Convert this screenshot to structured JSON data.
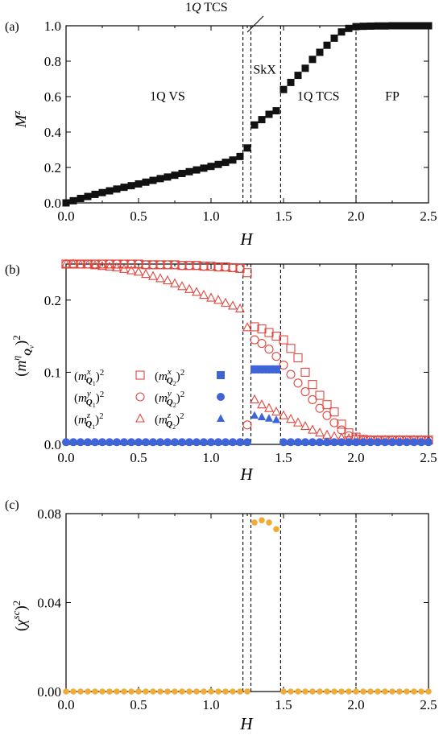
{
  "colors": {
    "red": "#e0473f",
    "blue": "#3f64d8",
    "orange": "#f2ac36",
    "black": "#111111"
  },
  "transitions": [
    1.22,
    1.275,
    1.48,
    2.0
  ],
  "panels": [
    {
      "id": "a",
      "label": "(a)",
      "xlabel": "H",
      "ylabel": "Mz",
      "xlim": [
        0,
        2.5
      ],
      "ylim": [
        0,
        1.0
      ],
      "xticks": [
        "0.0",
        "0.5",
        "1.0",
        "1.5",
        "2.0",
        "2.5"
      ],
      "yticks": [
        "0.0",
        "0.2",
        "0.4",
        "0.6",
        "0.8",
        "1.0"
      ],
      "regions": [
        {
          "text": "1Q VS",
          "x": 0.7,
          "y": 0.58
        },
        {
          "text": "SkX",
          "x": 1.37,
          "y": 0.73
        },
        {
          "text": "1Q TCS",
          "x": 1.74,
          "y": 0.58
        },
        {
          "text": "FP",
          "x": 2.25,
          "y": 0.58
        }
      ],
      "annotation": "1Q TCS"
    },
    {
      "id": "b",
      "label": "(b)",
      "xlabel": "H",
      "ylabel": "(m^η_Qν)^2",
      "xlim": [
        0,
        2.5
      ],
      "ylim": [
        0,
        0.25
      ],
      "xticks": [
        "0.0",
        "0.5",
        "1.0",
        "1.5",
        "2.0",
        "2.5"
      ],
      "yticks": [
        "0.0",
        "0.1",
        "0.2"
      ],
      "legend": [
        {
          "base": "(m",
          "sup": "x",
          "sub": "Q",
          "idx": "1",
          "tail": ")²",
          "marker": "square-open",
          "color": "red"
        },
        {
          "base": "(m",
          "sup": "y",
          "sub": "Q",
          "idx": "1",
          "tail": ")²",
          "marker": "circle-open",
          "color": "red"
        },
        {
          "base": "(m",
          "sup": "z",
          "sub": "Q",
          "idx": "1",
          "tail": ")²",
          "marker": "triangle-open",
          "color": "red"
        },
        {
          "base": "(m",
          "sup": "x",
          "sub": "Q",
          "idx": "2",
          "tail": ")²",
          "marker": "square",
          "color": "blue"
        },
        {
          "base": "(m",
          "sup": "y",
          "sub": "Q",
          "idx": "2",
          "tail": ")²",
          "marker": "circle",
          "color": "blue"
        },
        {
          "base": "(m",
          "sup": "z",
          "sub": "Q",
          "idx": "2",
          "tail": ")²",
          "marker": "triangle",
          "color": "blue"
        }
      ]
    },
    {
      "id": "c",
      "label": "(c)",
      "xlabel": "H",
      "ylabel": "(χsc)²",
      "xlim": [
        0,
        2.5
      ],
      "ylim": [
        0,
        0.08
      ],
      "xticks": [
        "0.0",
        "0.5",
        "1.0",
        "1.5",
        "2.0",
        "2.5"
      ],
      "yticks": [
        "0.00",
        "0.04",
        "0.08"
      ]
    }
  ],
  "chart_data": [
    {
      "type": "scatter",
      "panel": "a",
      "series": [
        {
          "color": "black",
          "marker": "square",
          "x": [
            0.0,
            0.05,
            0.1,
            0.15,
            0.2,
            0.25,
            0.3,
            0.35,
            0.4,
            0.45,
            0.5,
            0.55,
            0.6,
            0.65,
            0.7,
            0.75,
            0.8,
            0.85,
            0.9,
            0.95,
            1.0,
            1.05,
            1.1,
            1.15,
            1.2,
            1.25,
            1.3,
            1.35,
            1.4,
            1.45,
            1.5,
            1.55,
            1.6,
            1.65,
            1.7,
            1.75,
            1.8,
            1.85,
            1.9,
            1.95,
            2.0,
            2.05,
            2.1,
            2.15,
            2.2,
            2.25,
            2.3,
            2.35,
            2.4,
            2.45,
            2.5
          ],
          "y": [
            0.0,
            0.012,
            0.025,
            0.036,
            0.048,
            0.058,
            0.068,
            0.078,
            0.088,
            0.097,
            0.107,
            0.117,
            0.127,
            0.137,
            0.146,
            0.156,
            0.166,
            0.176,
            0.186,
            0.196,
            0.206,
            0.217,
            0.229,
            0.242,
            0.262,
            0.31,
            0.44,
            0.47,
            0.5,
            0.52,
            0.64,
            0.68,
            0.72,
            0.76,
            0.81,
            0.85,
            0.89,
            0.93,
            0.965,
            0.985,
            0.995,
            0.997,
            0.998,
            0.999,
            0.999,
            1.0,
            1.0,
            1.0,
            1.0,
            1.0,
            1.0
          ]
        }
      ]
    },
    {
      "type": "scatter",
      "panel": "b",
      "series": [
        {
          "color": "red",
          "marker": "square-open",
          "x": [
            0.0,
            0.05,
            0.1,
            0.15,
            0.2,
            0.25,
            0.3,
            0.35,
            0.4,
            0.45,
            0.5,
            0.55,
            0.6,
            0.65,
            0.7,
            0.75,
            0.8,
            0.85,
            0.9,
            0.95,
            1.0,
            1.05,
            1.1,
            1.15,
            1.2,
            1.25,
            1.3,
            1.35,
            1.4,
            1.45,
            1.5,
            1.55,
            1.6,
            1.65,
            1.7,
            1.75,
            1.8,
            1.85,
            1.9,
            1.95,
            2.0,
            2.05,
            2.1,
            2.15,
            2.2,
            2.25,
            2.3,
            2.35,
            2.4,
            2.45,
            2.5
          ],
          "y": [
            0.25,
            0.25,
            0.25,
            0.25,
            0.25,
            0.25,
            0.25,
            0.25,
            0.25,
            0.25,
            0.25,
            0.249,
            0.249,
            0.249,
            0.249,
            0.249,
            0.248,
            0.248,
            0.248,
            0.247,
            0.247,
            0.246,
            0.246,
            0.245,
            0.244,
            0.238,
            0.163,
            0.16,
            0.155,
            0.15,
            0.145,
            0.133,
            0.12,
            0.1,
            0.083,
            0.068,
            0.055,
            0.045,
            0.028,
            0.016,
            0.01,
            0.007,
            0.006,
            0.006,
            0.006,
            0.006,
            0.006,
            0.006,
            0.006,
            0.006,
            0.006
          ]
        },
        {
          "color": "red",
          "marker": "circle-open",
          "x": [
            0.0,
            0.05,
            0.1,
            0.15,
            0.2,
            0.25,
            0.3,
            0.35,
            0.4,
            0.45,
            0.5,
            0.55,
            0.6,
            0.65,
            0.7,
            0.75,
            0.8,
            0.85,
            0.9,
            0.95,
            1.0,
            1.05,
            1.1,
            1.15,
            1.2,
            1.25,
            1.3,
            1.35,
            1.4,
            1.45,
            1.5,
            1.55,
            1.6,
            1.65,
            1.7,
            1.75,
            1.8,
            1.85,
            1.9,
            1.95,
            2.0,
            2.05,
            2.1,
            2.15,
            2.2,
            2.25,
            2.3,
            2.35,
            2.4,
            2.45,
            2.5
          ],
          "y": [
            0.25,
            0.25,
            0.25,
            0.25,
            0.25,
            0.25,
            0.25,
            0.25,
            0.25,
            0.25,
            0.25,
            0.249,
            0.249,
            0.249,
            0.249,
            0.249,
            0.248,
            0.248,
            0.248,
            0.247,
            0.247,
            0.246,
            0.246,
            0.245,
            0.244,
            0.027,
            0.145,
            0.14,
            0.132,
            0.122,
            0.11,
            0.097,
            0.085,
            0.073,
            0.062,
            0.05,
            0.04,
            0.03,
            0.02,
            0.012,
            0.008,
            0.006,
            0.006,
            0.006,
            0.006,
            0.006,
            0.006,
            0.006,
            0.006,
            0.006,
            0.006
          ]
        },
        {
          "color": "red",
          "marker": "triangle-open",
          "x": [
            0.0,
            0.05,
            0.1,
            0.15,
            0.2,
            0.25,
            0.3,
            0.35,
            0.4,
            0.45,
            0.5,
            0.55,
            0.6,
            0.65,
            0.7,
            0.75,
            0.8,
            0.85,
            0.9,
            0.95,
            1.0,
            1.05,
            1.1,
            1.15,
            1.2,
            1.25,
            1.3,
            1.35,
            1.4,
            1.45,
            1.5,
            1.55,
            1.6,
            1.65,
            1.7,
            1.75,
            1.8,
            1.85,
            1.9,
            1.95,
            2.0,
            2.05,
            2.1,
            2.15,
            2.2,
            2.25,
            2.3,
            2.35,
            2.4,
            2.45,
            2.5
          ],
          "y": [
            0.25,
            0.25,
            0.249,
            0.249,
            0.248,
            0.247,
            0.246,
            0.245,
            0.243,
            0.241,
            0.239,
            0.236,
            0.233,
            0.23,
            0.227,
            0.223,
            0.219,
            0.215,
            0.211,
            0.207,
            0.203,
            0.2,
            0.196,
            0.192,
            0.188,
            0.162,
            0.062,
            0.055,
            0.05,
            0.045,
            0.04,
            0.035,
            0.03,
            0.025,
            0.02,
            0.016,
            0.013,
            0.011,
            0.009,
            0.008,
            0.007,
            0.006,
            0.006,
            0.006,
            0.006,
            0.006,
            0.006,
            0.006,
            0.006,
            0.006,
            0.006
          ]
        },
        {
          "color": "blue",
          "marker": "square",
          "x": [
            1.3,
            1.35,
            1.4,
            1.45
          ],
          "y": [
            0.104,
            0.104,
            0.104,
            0.104
          ]
        },
        {
          "color": "blue",
          "marker": "circle",
          "x": [
            0.0,
            0.05,
            0.1,
            0.15,
            0.2,
            0.25,
            0.3,
            0.35,
            0.4,
            0.45,
            0.5,
            0.55,
            0.6,
            0.65,
            0.7,
            0.75,
            0.8,
            0.85,
            0.9,
            0.95,
            1.0,
            1.05,
            1.1,
            1.15,
            1.2,
            1.25,
            1.3,
            1.35,
            1.4,
            1.45,
            1.5,
            1.55,
            1.6,
            1.65,
            1.7,
            1.75,
            1.8,
            1.85,
            1.9,
            1.95,
            2.0,
            2.05,
            2.1,
            2.15,
            2.2,
            2.25,
            2.3,
            2.35,
            2.4,
            2.45,
            2.5
          ],
          "y": [
            0.003,
            0.003,
            0.003,
            0.003,
            0.003,
            0.003,
            0.003,
            0.003,
            0.003,
            0.003,
            0.003,
            0.003,
            0.003,
            0.003,
            0.003,
            0.003,
            0.003,
            0.003,
            0.003,
            0.003,
            0.003,
            0.003,
            0.003,
            0.003,
            0.003,
            0.003,
            0.104,
            0.104,
            0.104,
            0.104,
            0.003,
            0.003,
            0.003,
            0.003,
            0.003,
            0.003,
            0.003,
            0.003,
            0.003,
            0.003,
            0.003,
            0.003,
            0.003,
            0.003,
            0.003,
            0.003,
            0.003,
            0.003,
            0.003,
            0.003,
            0.003
          ]
        },
        {
          "color": "blue",
          "marker": "triangle",
          "x": [
            1.3,
            1.35,
            1.4,
            1.45
          ],
          "y": [
            0.04,
            0.038,
            0.036,
            0.034
          ]
        }
      ]
    },
    {
      "type": "scatter",
      "panel": "c",
      "series": [
        {
          "color": "orange",
          "marker": "circle",
          "x": [
            0.0,
            0.05,
            0.1,
            0.15,
            0.2,
            0.25,
            0.3,
            0.35,
            0.4,
            0.45,
            0.5,
            0.55,
            0.6,
            0.65,
            0.7,
            0.75,
            0.8,
            0.85,
            0.9,
            0.95,
            1.0,
            1.05,
            1.1,
            1.15,
            1.2,
            1.25,
            1.3,
            1.35,
            1.4,
            1.45,
            1.5,
            1.55,
            1.6,
            1.65,
            1.7,
            1.75,
            1.8,
            1.85,
            1.9,
            1.95,
            2.0,
            2.05,
            2.1,
            2.15,
            2.2,
            2.25,
            2.3,
            2.35,
            2.4,
            2.45,
            2.5
          ],
          "y": [
            0,
            0,
            0,
            0,
            0,
            0,
            0,
            0,
            0,
            0,
            0,
            0,
            0,
            0,
            0,
            0,
            0,
            0,
            0,
            0,
            0,
            0,
            0,
            0,
            0,
            0,
            0.076,
            0.077,
            0.076,
            0.073,
            0,
            0,
            0,
            0,
            0,
            0,
            0,
            0,
            0,
            0,
            0,
            0,
            0,
            0,
            0,
            0,
            0,
            0,
            0,
            0,
            0
          ]
        }
      ]
    }
  ]
}
